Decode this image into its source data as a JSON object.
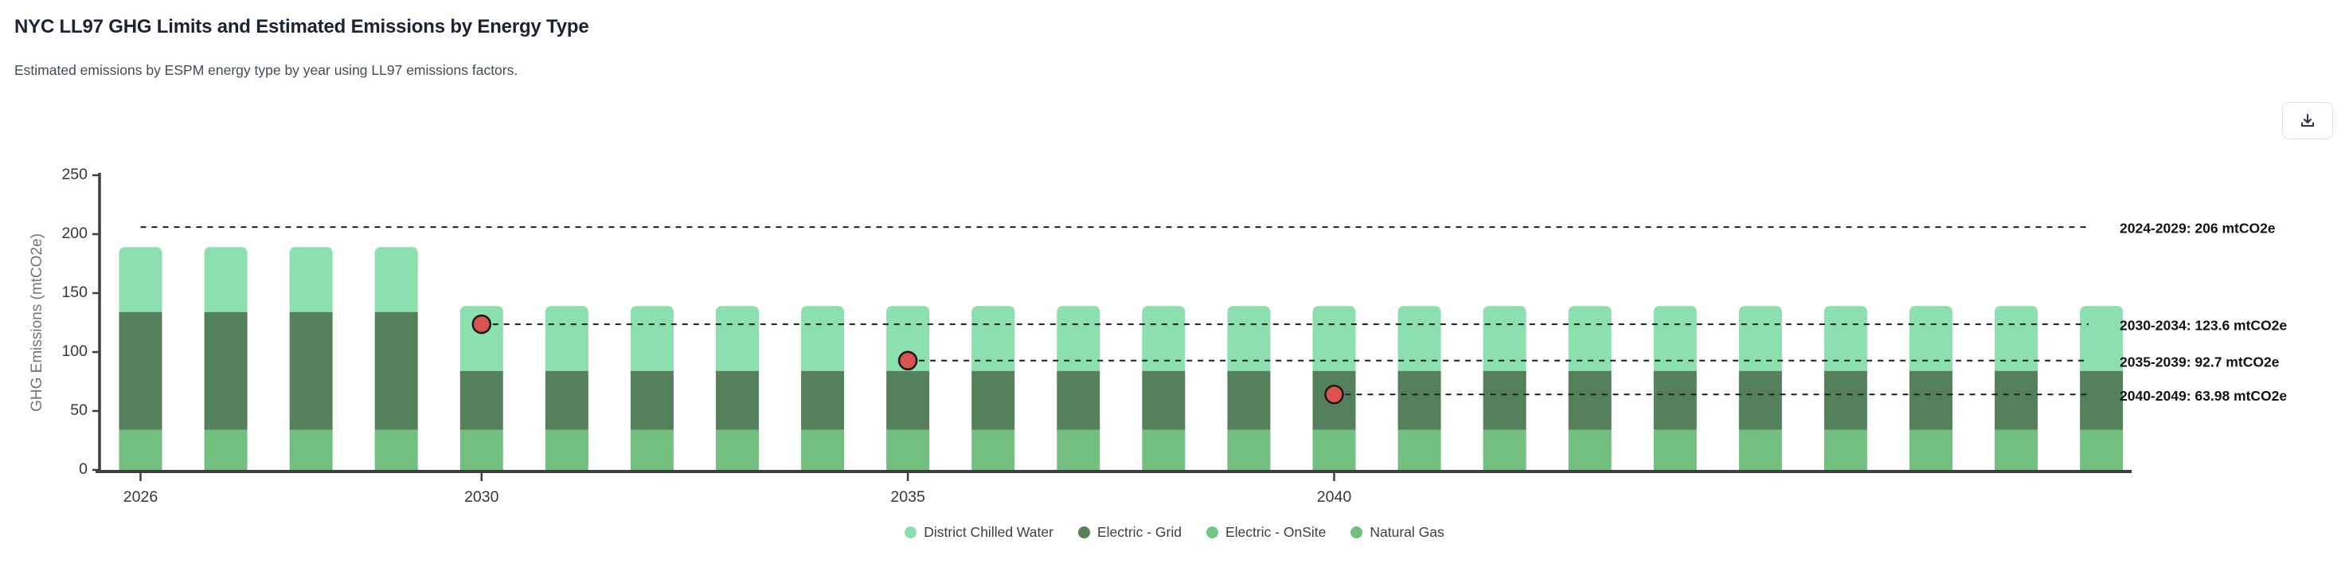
{
  "header": {
    "title": "NYC LL97 GHG Limits and Estimated Emissions by Energy Type",
    "subtitle": "Estimated emissions by ESPM energy type by year using LL97 emissions factors."
  },
  "toolbar": {
    "icons": {
      "download": "download-icon"
    }
  },
  "chart_data": {
    "type": "bar",
    "stacked": true,
    "title": "NYC LL97 GHG Limits and Estimated Emissions by Energy Type",
    "xlabel": "",
    "ylabel": "GHG Emissions (mtCO2e)",
    "ylim": [
      0,
      250
    ],
    "yticks": [
      0,
      50,
      100,
      150,
      200,
      250
    ],
    "xticks": [
      2026,
      2030,
      2035,
      2040
    ],
    "grid": false,
    "legend_position": "bottom",
    "categories": [
      2026,
      2027,
      2028,
      2029,
      2030,
      2031,
      2032,
      2033,
      2034,
      2035,
      2036,
      2037,
      2038,
      2039,
      2040,
      2041,
      2042,
      2043,
      2044,
      2045,
      2046,
      2047,
      2048,
      2049
    ],
    "series": [
      {
        "name": "Natural Gas",
        "color": "#72bf80",
        "values": [
          34,
          34,
          34,
          34,
          34,
          34,
          34,
          34,
          34,
          34,
          34,
          34,
          34,
          34,
          34,
          34,
          34,
          34,
          34,
          34,
          34,
          34,
          34,
          34
        ]
      },
      {
        "name": "Electric - OnSite",
        "color": "#74c687",
        "values": [
          0,
          0,
          0,
          0,
          0,
          0,
          0,
          0,
          0,
          0,
          0,
          0,
          0,
          0,
          0,
          0,
          0,
          0,
          0,
          0,
          0,
          0,
          0,
          0
        ]
      },
      {
        "name": "Electric - Grid",
        "color": "#54805c",
        "values": [
          100,
          100,
          100,
          100,
          50,
          50,
          50,
          50,
          50,
          50,
          50,
          50,
          50,
          50,
          50,
          50,
          50,
          50,
          50,
          50,
          50,
          50,
          50,
          50
        ]
      },
      {
        "name": "District Chilled Water",
        "color": "#8cdfae",
        "values": [
          55,
          55,
          55,
          55,
          55,
          55,
          55,
          55,
          55,
          55,
          55,
          55,
          55,
          55,
          55,
          55,
          55,
          55,
          55,
          55,
          55,
          55,
          55,
          55
        ]
      }
    ],
    "legend": [
      {
        "label": "District Chilled Water",
        "color": "#8cdfae"
      },
      {
        "label": "Electric - Grid",
        "color": "#54805c"
      },
      {
        "label": "Electric - OnSite",
        "color": "#74c687"
      },
      {
        "label": "Natural Gas",
        "color": "#72bf80"
      }
    ],
    "limits": [
      {
        "label": "2024-2029: 206 mtCO2e",
        "value": 206,
        "start_year": 2026,
        "marker_year": null
      },
      {
        "label": "2030-2034: 123.6 mtCO2e",
        "value": 123.6,
        "start_year": 2030,
        "marker_year": 2030
      },
      {
        "label": "2035-2039: 92.7 mtCO2e",
        "value": 92.7,
        "start_year": 2035,
        "marker_year": 2035
      },
      {
        "label": "2040-2049: 63.98 mtCO2e",
        "value": 63.98,
        "start_year": 2040,
        "marker_year": 2040
      }
    ],
    "limit_line_color": "#1f1f1f",
    "annotation_color": "#101418",
    "marker_color": "#d9534f",
    "marker_stroke": "#1a1a1a"
  }
}
